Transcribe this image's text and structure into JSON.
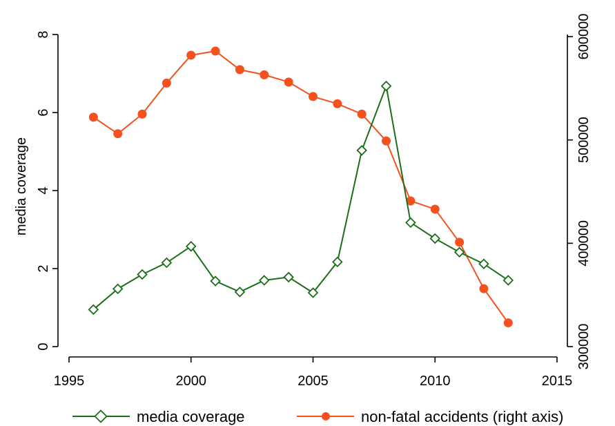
{
  "colors": {
    "media": "#1a6e1a",
    "accidents": "#f4511e",
    "axis": "#000000",
    "background": "#ffffff"
  },
  "chart_data": {
    "type": "line",
    "title": "",
    "xlabel": "",
    "ylabel": "media coverage",
    "y2label": "",
    "xlim": [
      1995,
      2015
    ],
    "ylim": [
      0,
      8
    ],
    "y2lim": [
      300000,
      600000
    ],
    "x_ticks": [
      1995,
      2000,
      2005,
      2010,
      2015
    ],
    "y_ticks": [
      0,
      2,
      4,
      6,
      8
    ],
    "y2_ticks": [
      300000,
      400000,
      500000,
      600000
    ],
    "grid": false,
    "legend_position": "bottom",
    "series": [
      {
        "name": "media coverage",
        "axis": "left",
        "marker": "hollow-diamond",
        "x": [
          1996,
          1997,
          1998,
          1999,
          2000,
          2001,
          2002,
          2003,
          2004,
          2005,
          2006,
          2007,
          2008,
          2009,
          2010,
          2011,
          2012,
          2013
        ],
        "values": [
          0.95,
          1.48,
          1.85,
          2.15,
          2.57,
          1.68,
          1.4,
          1.7,
          1.78,
          1.38,
          2.17,
          5.03,
          6.68,
          3.18,
          2.77,
          2.42,
          2.12,
          1.7
        ]
      },
      {
        "name": "non-fatal accidents (right axis)",
        "axis": "right",
        "marker": "filled-circle",
        "x": [
          1996,
          1997,
          1998,
          1999,
          2000,
          2001,
          2002,
          2003,
          2004,
          2005,
          2006,
          2007,
          2008,
          2009,
          2010,
          2011,
          2012,
          2013
        ],
        "values": [
          522000,
          506000,
          525000,
          555000,
          582000,
          586000,
          568000,
          563000,
          556000,
          542000,
          535000,
          525000,
          499000,
          441000,
          433000,
          401000,
          356000,
          323000
        ]
      }
    ]
  }
}
